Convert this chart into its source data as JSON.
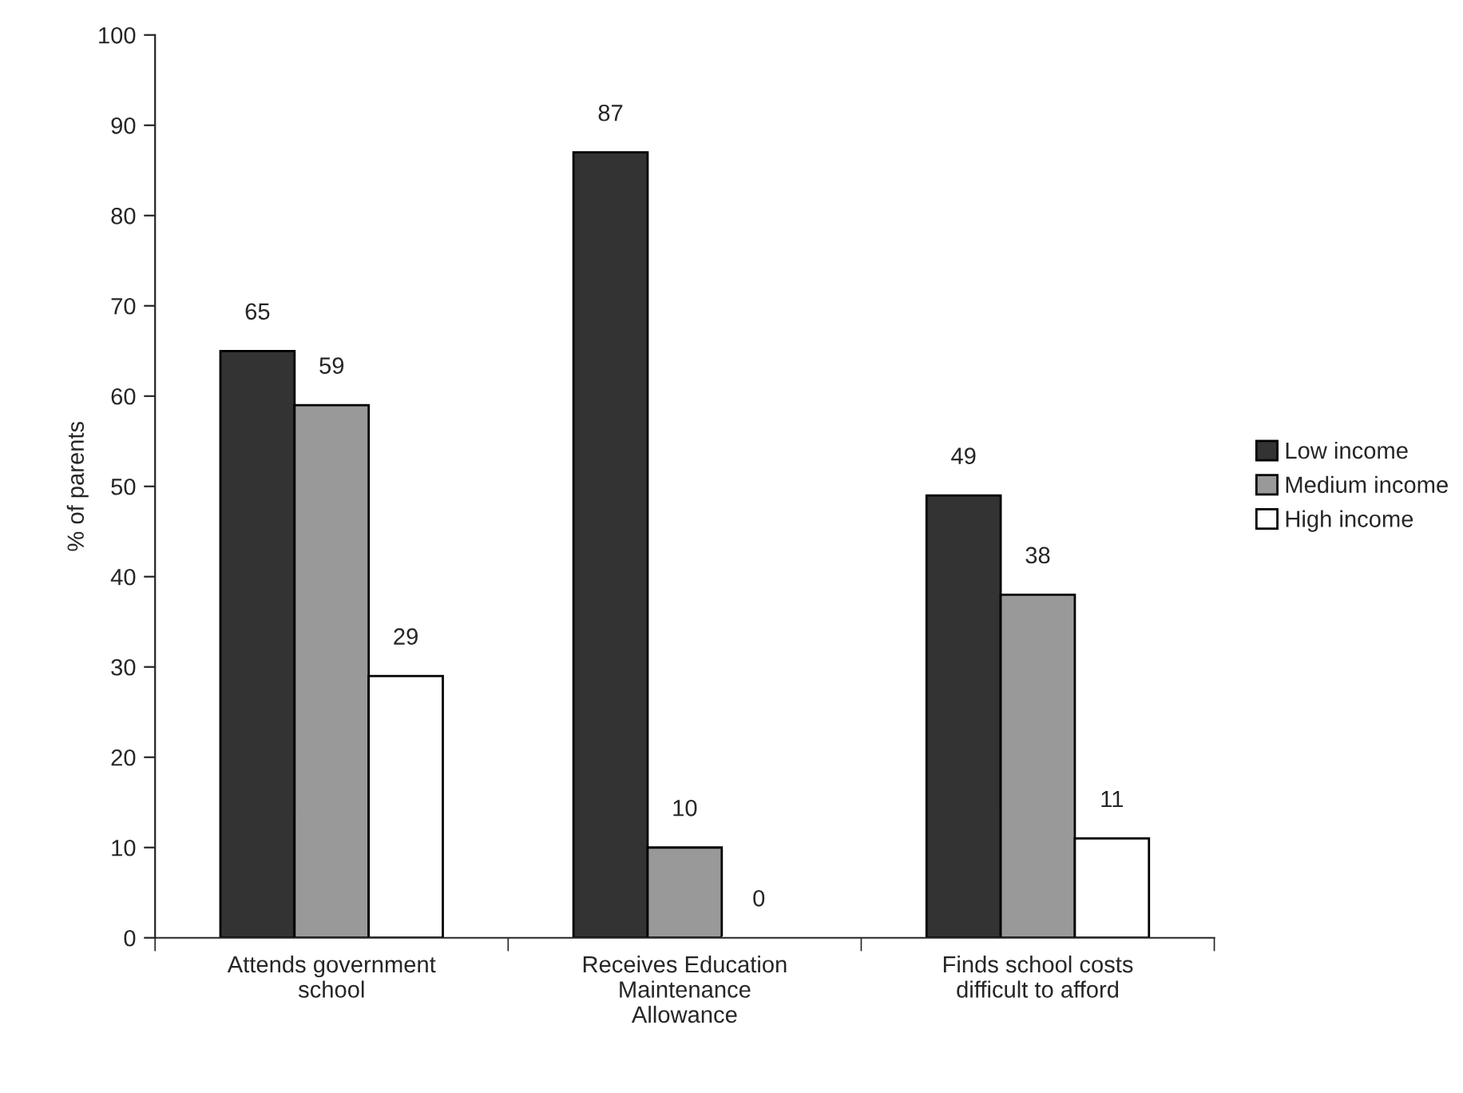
{
  "chart_data": {
    "type": "bar",
    "ylabel": "% of parents",
    "categories": [
      "Attends government\nschool",
      "Receives Education\nMaintenance\nAllowance",
      "Finds school costs\ndifficult to afford"
    ],
    "series": [
      {
        "name": "Low income",
        "color": "#333333",
        "values": [
          65,
          87,
          49
        ]
      },
      {
        "name": "Medium income",
        "color": "#999999",
        "values": [
          59,
          10,
          38
        ]
      },
      {
        "name": "High income",
        "color": "#ffffff",
        "values": [
          29,
          0,
          11
        ]
      }
    ],
    "ylim": [
      0,
      100
    ],
    "yticks": [
      0,
      10,
      20,
      30,
      40,
      50,
      60,
      70,
      80,
      90,
      100
    ],
    "data_labels": true,
    "grid": false,
    "legend": "right"
  }
}
